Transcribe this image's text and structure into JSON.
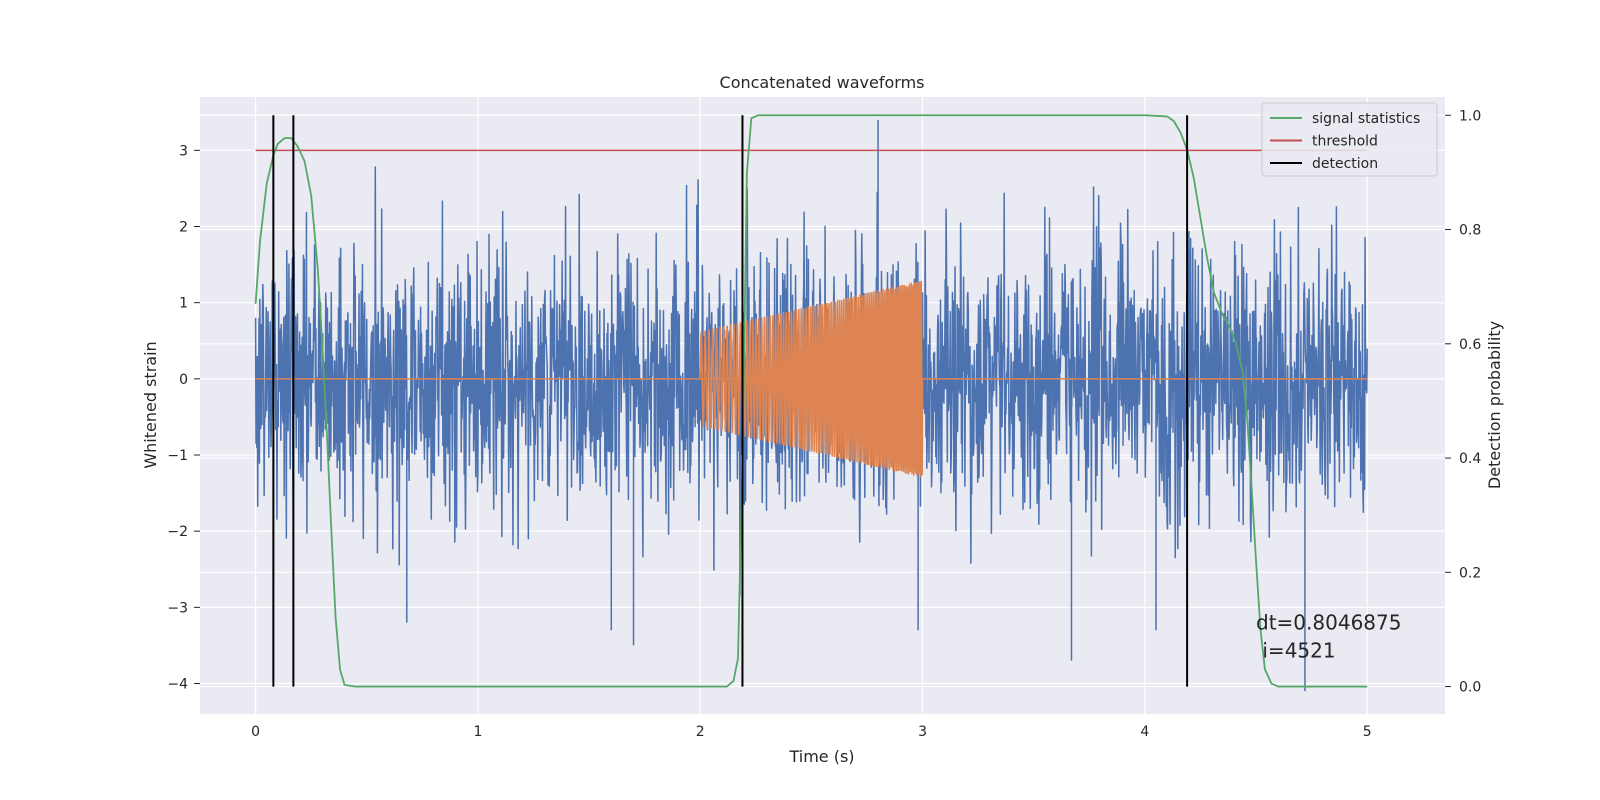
{
  "chart_data": {
    "type": "line",
    "title": "Concatenated waveforms",
    "xlabel": "Time (s)",
    "ylabel": "Whitened strain",
    "ylabel_right": "Detection probability",
    "xlim": [
      -0.25,
      5.35
    ],
    "ylim": [
      -4.4,
      3.7
    ],
    "ylim_right": [
      -0.048,
      1.032
    ],
    "xticks": [
      "0",
      "1",
      "2",
      "3",
      "4",
      "5"
    ],
    "xtick_values": [
      0,
      1,
      2,
      3,
      4,
      5
    ],
    "yticks": [
      "−4",
      "−3",
      "−2",
      "−1",
      "0",
      "1",
      "2",
      "3"
    ],
    "ytick_values": [
      -4,
      -3,
      -2,
      -1,
      0,
      1,
      2,
      3
    ],
    "yticks_right": [
      "0.0",
      "0.2",
      "0.4",
      "0.6",
      "0.8",
      "1.0"
    ],
    "ytick_values_right": [
      0.0,
      0.2,
      0.4,
      0.6,
      0.8,
      1.0
    ],
    "grid": true,
    "legend_position": "top-right",
    "colors": {
      "background": "#eaeaf2",
      "grid": "#ffffff",
      "noise": "#4c72b0",
      "injection": "#dd8452",
      "signal_statistics": "#55a868",
      "threshold": "#c44e52",
      "detection": "#000000"
    },
    "series": [
      {
        "key": "whitened_strain",
        "axis": "left",
        "style": "noise",
        "x_range": [
          0,
          5
        ],
        "envelope": {
          "typical_amplitude": 1.9,
          "max": 3.4,
          "min": -4.1
        },
        "notable_points": [
          {
            "x": 0.08,
            "y": -2.6
          },
          {
            "x": 0.68,
            "y": -3.2
          },
          {
            "x": 1.6,
            "y": -3.3
          },
          {
            "x": 1.7,
            "y": -3.5
          },
          {
            "x": 2.8,
            "y": 3.4
          },
          {
            "x": 2.98,
            "y": -3.3
          },
          {
            "x": 3.67,
            "y": -3.7
          },
          {
            "x": 4.05,
            "y": -3.3
          },
          {
            "x": 4.72,
            "y": -4.1
          }
        ]
      },
      {
        "key": "injected_waveform",
        "axis": "left",
        "style": "chirp",
        "x_range": [
          2.0,
          3.0
        ],
        "amplitude_start": 0.62,
        "amplitude_end": 1.3,
        "offset": 0,
        "baseline": 0,
        "baseline_x_range": [
          0,
          5
        ]
      },
      {
        "name": "signal statistics",
        "axis": "right",
        "x": [
          0.0,
          0.02,
          0.05,
          0.08,
          0.1,
          0.13,
          0.16,
          0.19,
          0.22,
          0.25,
          0.28,
          0.3,
          0.32,
          0.34,
          0.36,
          0.38,
          0.4,
          0.45,
          0.6,
          1.0,
          2.0,
          2.12,
          2.15,
          2.17,
          2.19,
          2.21,
          2.23,
          2.26,
          2.3,
          2.5,
          3.0,
          4.0,
          4.1,
          4.13,
          4.16,
          4.19,
          4.22,
          4.25,
          4.28,
          4.31,
          4.35,
          4.38,
          4.41,
          4.44,
          4.46,
          4.48,
          4.5,
          4.52,
          4.54,
          4.57,
          4.6,
          5.0
        ],
        "y": [
          0.67,
          0.78,
          0.88,
          0.93,
          0.95,
          0.96,
          0.96,
          0.945,
          0.92,
          0.86,
          0.73,
          0.6,
          0.45,
          0.28,
          0.12,
          0.03,
          0.003,
          0.0,
          0.0,
          0.0,
          0.0,
          0.0,
          0.01,
          0.05,
          0.4,
          0.9,
          0.995,
          1.0,
          1.0,
          1.0,
          1.0,
          1.0,
          0.998,
          0.99,
          0.97,
          0.94,
          0.89,
          0.82,
          0.75,
          0.69,
          0.65,
          0.63,
          0.6,
          0.55,
          0.47,
          0.35,
          0.22,
          0.1,
          0.03,
          0.005,
          0.0,
          0.0
        ]
      },
      {
        "name": "threshold",
        "axis": "left",
        "x": [
          0,
          5
        ],
        "y": [
          3,
          3
        ]
      }
    ],
    "detections": {
      "name": "detection",
      "x": [
        0.08,
        0.17,
        2.19,
        4.19
      ],
      "y_range_right": [
        0.0,
        1.0
      ]
    },
    "annotation": {
      "line1": "dt=0.8046875",
      "line2": " i=4521",
      "x": 4.5,
      "y": -3.2
    }
  }
}
